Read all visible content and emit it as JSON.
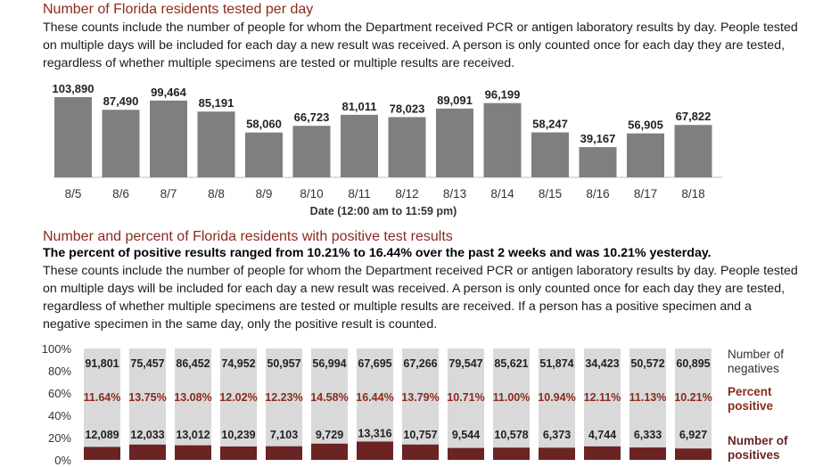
{
  "section1": {
    "title": "Number of Florida residents tested per day",
    "description": "These counts include the number of people for whom the Department received PCR or antigen laboratory results by day. People tested on multiple days will be included for each day a new result was received. A person is only counted once for each day they are tested, regardless of whether multiple specimens are tested or multiple results are received."
  },
  "section2": {
    "title": "Number and percent of Florida residents with positive test results",
    "highlight": "The percent of positive results ranged from 10.21% to 16.44% over the past 2 weeks and was 10.21% yesterday.",
    "description": "These counts include the number of people for whom the Department received PCR or antigen laboratory results by day. People tested on multiple days will be included for each day a new result was received. A person is only counted once for each day they are tested, regardless of whether multiple specimens are tested or multiple results are received. If a person has a positive specimen and a negative specimen in the same day, only the positive result is counted."
  },
  "chart_data": [
    {
      "type": "bar",
      "categories": [
        "8/5",
        "8/6",
        "8/7",
        "8/8",
        "8/9",
        "8/10",
        "8/11",
        "8/12",
        "8/13",
        "8/14",
        "8/15",
        "8/16",
        "8/17",
        "8/18"
      ],
      "values": [
        103890,
        87490,
        99464,
        85191,
        58060,
        66723,
        81011,
        78023,
        89091,
        96199,
        58247,
        39167,
        56905,
        67822
      ],
      "value_labels": [
        "103,890",
        "87,490",
        "99,464",
        "85,191",
        "58,060",
        "66,723",
        "81,011",
        "78,023",
        "89,091",
        "96,199",
        "58,247",
        "39,167",
        "56,905",
        "67,822"
      ],
      "xlabel": "Date (12:00 am to 11:59 pm)",
      "ylabel": "",
      "color": "#7f7f7f",
      "grid": false
    },
    {
      "type": "bar",
      "stacked": true,
      "percent": true,
      "categories": [
        "8/5",
        "8/6",
        "8/7",
        "8/8",
        "8/9",
        "8/10",
        "8/11",
        "8/12",
        "8/13",
        "8/14",
        "8/15",
        "8/16",
        "8/17",
        "8/18"
      ],
      "yticks": [
        "0%",
        "20%",
        "40%",
        "60%",
        "80%",
        "100%"
      ],
      "series": [
        {
          "name": "Number of positives",
          "values": [
            12089,
            12033,
            13012,
            10239,
            7103,
            9729,
            13316,
            10757,
            9544,
            10578,
            6373,
            4744,
            6333,
            6927
          ],
          "labels": [
            "12,089",
            "12,033",
            "13,012",
            "10,239",
            "7,103",
            "9,729",
            "13,316",
            "10,757",
            "9,544",
            "10,578",
            "6,373",
            "4,744",
            "6,333",
            "6,927"
          ],
          "color": "#6b2323"
        },
        {
          "name": "Number of negatives",
          "values": [
            91801,
            75457,
            86452,
            74952,
            50957,
            56994,
            67695,
            67266,
            79547,
            85621,
            51874,
            34423,
            50572,
            60895
          ],
          "labels": [
            "91,801",
            "75,457",
            "86,452",
            "74,952",
            "50,957",
            "56,994",
            "67,695",
            "67,266",
            "79,547",
            "85,621",
            "51,874",
            "34,423",
            "50,572",
            "60,895"
          ],
          "color": "#d9d9d9"
        }
      ],
      "percent_positive": {
        "name": "Percent positive",
        "labels": [
          "11.64%",
          "13.75%",
          "13.08%",
          "12.02%",
          "12.23%",
          "14.58%",
          "16.44%",
          "13.79%",
          "10.71%",
          "11.00%",
          "10.94%",
          "12.11%",
          "11.13%",
          "10.21%"
        ],
        "color": "#8b2a1c"
      }
    }
  ]
}
